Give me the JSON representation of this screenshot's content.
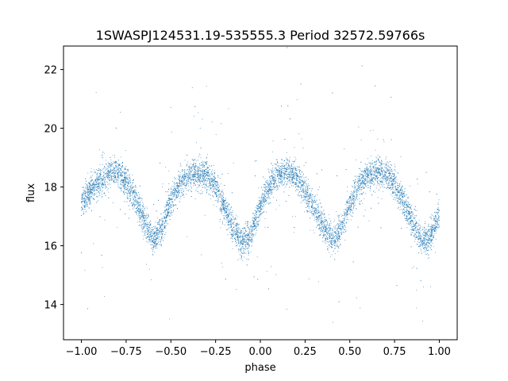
{
  "chart_data": {
    "type": "scatter",
    "title": "1SWASPJ124531.19-535555.3 Period 32572.59766s",
    "xlabel": "phase",
    "ylabel": "flux",
    "xlim": [
      -1.1,
      1.1
    ],
    "ylim": [
      12.8,
      22.8
    ],
    "xticks": [
      -1.0,
      -0.75,
      -0.5,
      -0.25,
      0.0,
      0.25,
      0.5,
      0.75,
      1.0
    ],
    "xtick_labels": [
      "−1.00",
      "−0.75",
      "−0.50",
      "−0.25",
      "0.00",
      "0.25",
      "0.50",
      "0.75",
      "1.00"
    ],
    "yticks": [
      14,
      16,
      18,
      20,
      22
    ],
    "ytick_labels": [
      "14",
      "16",
      "18",
      "20",
      "22"
    ],
    "grid": false,
    "point_color": "#1f77b4",
    "series": [
      {
        "curve_profile": {
          "x": [
            -1.0,
            -0.95,
            -0.9,
            -0.85,
            -0.8,
            -0.75,
            -0.7,
            -0.65,
            -0.6,
            -0.55,
            -0.5,
            -0.45,
            -0.4,
            -0.35,
            -0.3,
            -0.25,
            -0.2,
            -0.15,
            -0.1,
            -0.05,
            0.0,
            0.05,
            0.1,
            0.15,
            0.2,
            0.25,
            0.3,
            0.35,
            0.4,
            0.45,
            0.5,
            0.55,
            0.6,
            0.65,
            0.7,
            0.75,
            0.8,
            0.85,
            0.9,
            0.95,
            1.0
          ],
          "y": [
            17.4,
            17.9,
            18.2,
            18.45,
            18.5,
            18.2,
            17.6,
            16.9,
            16.2,
            16.6,
            17.5,
            18.1,
            18.4,
            18.5,
            18.4,
            18.0,
            17.3,
            16.6,
            16.1,
            16.4,
            17.3,
            18.0,
            18.4,
            18.5,
            18.35,
            17.9,
            17.3,
            16.7,
            16.2,
            16.5,
            17.4,
            18.0,
            18.35,
            18.5,
            18.4,
            18.1,
            17.5,
            16.8,
            16.2,
            16.3,
            17.1
          ]
        },
        "scatter_half_width": 0.45,
        "n_points": 9000
      }
    ]
  }
}
